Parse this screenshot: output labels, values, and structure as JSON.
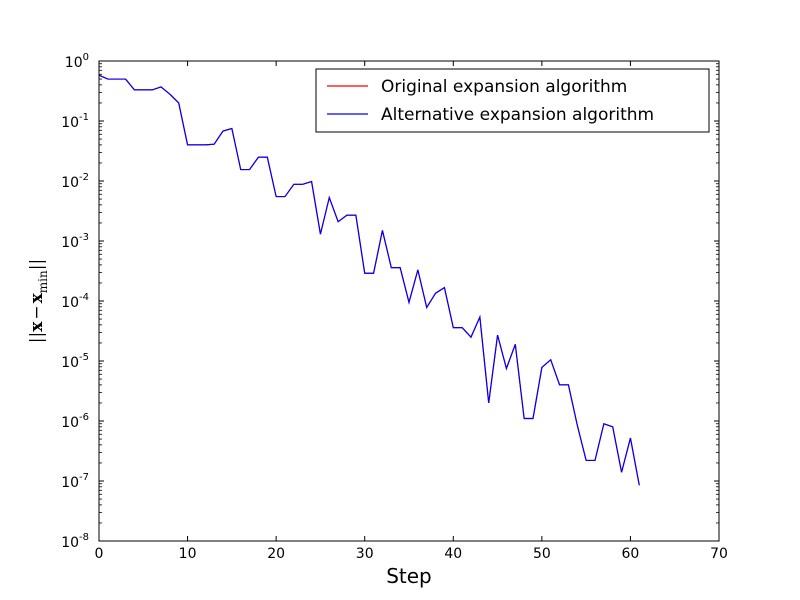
{
  "chart_data": {
    "type": "line",
    "title": "",
    "xlabel": "Step",
    "ylabel": "||x − x_min||",
    "ylabel_parts": {
      "norm": "||",
      "x": "x",
      "minus": "−",
      "xmin": "x",
      "sub": "min"
    },
    "xlim": [
      0,
      70
    ],
    "ylim": [
      1e-08,
      1
    ],
    "yscale": "log",
    "x_ticks": [
      0,
      10,
      20,
      30,
      40,
      50,
      60,
      70
    ],
    "y_ticks": [
      {
        "mantissa": "10",
        "exp": "0",
        "value": 1
      },
      {
        "mantissa": "10",
        "exp": "-1",
        "value": 0.1
      },
      {
        "mantissa": "10",
        "exp": "-2",
        "value": 0.01
      },
      {
        "mantissa": "10",
        "exp": "-3",
        "value": 0.001
      },
      {
        "mantissa": "10",
        "exp": "-4",
        "value": 0.0001
      },
      {
        "mantissa": "10",
        "exp": "-5",
        "value": 1e-05
      },
      {
        "mantissa": "10",
        "exp": "-6",
        "value": 1e-06
      },
      {
        "mantissa": "10",
        "exp": "-7",
        "value": 1e-07
      },
      {
        "mantissa": "10",
        "exp": "-8",
        "value": 1e-08
      }
    ],
    "grid": false,
    "legend_position": "top-right",
    "x": [
      0,
      1,
      2,
      3,
      4,
      5,
      6,
      7,
      8,
      9,
      10,
      11,
      12,
      13,
      14,
      15,
      16,
      17,
      18,
      19,
      20,
      21,
      22,
      23,
      24,
      25,
      26,
      27,
      28,
      29,
      30,
      31,
      32,
      33,
      34,
      35,
      36,
      37,
      38,
      39,
      40,
      41,
      42,
      43,
      44,
      45,
      46,
      47,
      48,
      49,
      50,
      51,
      52,
      53,
      54,
      55,
      56,
      57,
      58,
      59,
      60,
      61
    ],
    "series": [
      {
        "name": "Original expansion algorithm",
        "color": "#ff0000",
        "values": [
          0.58,
          0.5,
          0.5,
          0.5,
          0.33,
          0.33,
          0.33,
          0.37,
          0.28,
          0.2,
          0.04,
          0.04,
          0.04,
          0.041,
          0.068,
          0.075,
          0.0155,
          0.0155,
          0.025,
          0.025,
          0.0055,
          0.0055,
          0.0088,
          0.0088,
          0.0098,
          0.0013,
          0.0053,
          0.0021,
          0.0027,
          0.0027,
          0.00029,
          0.00029,
          0.0015,
          0.00036,
          0.00036,
          9.5e-05,
          0.00033,
          7.8e-05,
          0.000135,
          0.000167,
          3.6e-05,
          3.6e-05,
          2.5e-05,
          5.4e-05,
          2e-06,
          2.7e-05,
          7.5e-06,
          1.9e-05,
          1.1e-06,
          1.1e-06,
          7.8e-06,
          1.05e-05,
          4e-06,
          4e-06,
          8.5e-07,
          2.2e-07,
          2.2e-07,
          9e-07,
          8e-07,
          1.4e-07,
          5.2e-07,
          8.5e-08
        ]
      },
      {
        "name": "Alternative expansion algorithm",
        "color": "#0000ff",
        "values": [
          0.58,
          0.5,
          0.5,
          0.5,
          0.33,
          0.33,
          0.33,
          0.37,
          0.28,
          0.2,
          0.04,
          0.04,
          0.04,
          0.041,
          0.068,
          0.075,
          0.0155,
          0.0155,
          0.025,
          0.025,
          0.0055,
          0.0055,
          0.0088,
          0.0088,
          0.0098,
          0.0013,
          0.0053,
          0.0021,
          0.0027,
          0.0027,
          0.00029,
          0.00029,
          0.0015,
          0.00036,
          0.00036,
          9.5e-05,
          0.00033,
          7.8e-05,
          0.000135,
          0.000167,
          3.6e-05,
          3.6e-05,
          2.5e-05,
          5.4e-05,
          2e-06,
          2.7e-05,
          7.5e-06,
          1.9e-05,
          1.1e-06,
          1.1e-06,
          7.8e-06,
          1.05e-05,
          4e-06,
          4e-06,
          8.5e-07,
          2.2e-07,
          2.2e-07,
          9e-07,
          8e-07,
          1.4e-07,
          5.2e-07,
          8.5e-08
        ]
      }
    ]
  }
}
